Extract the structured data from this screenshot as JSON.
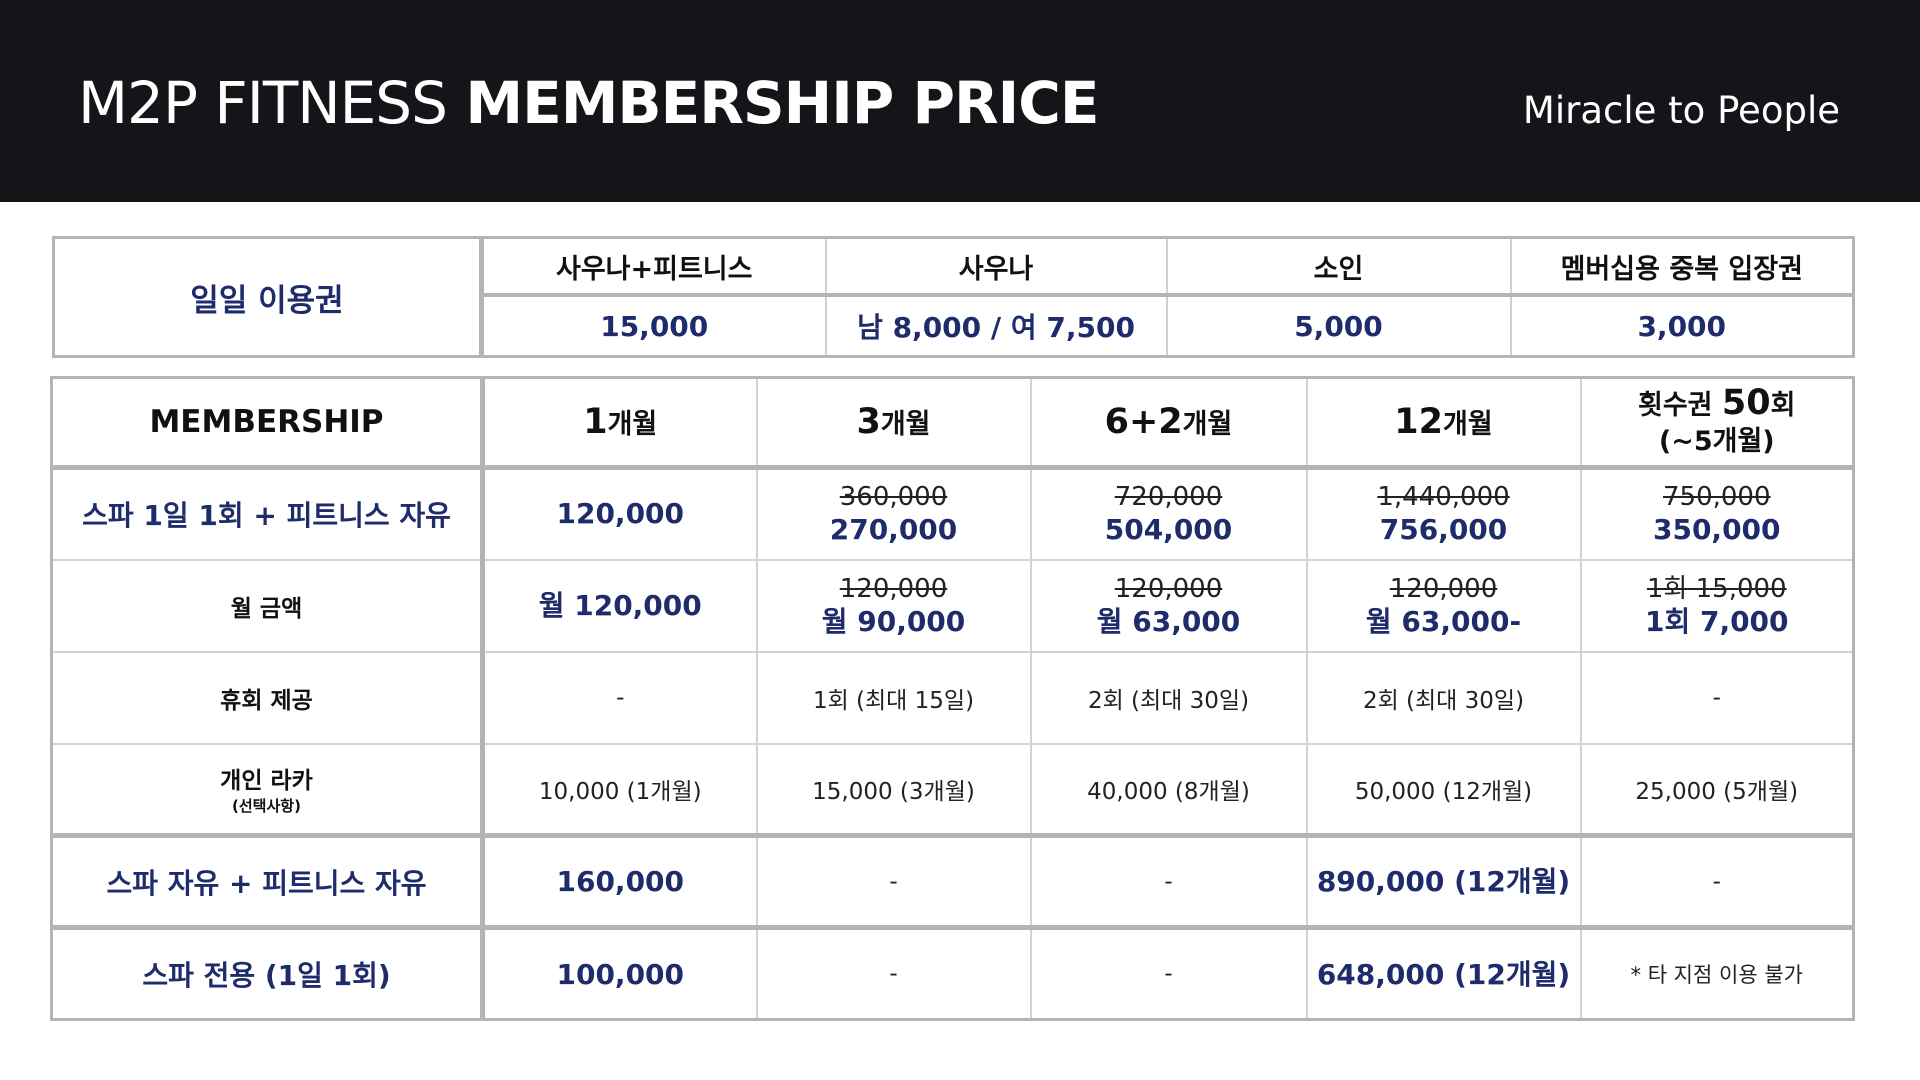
{
  "header": {
    "title_light": "M2P FITNESS",
    "title_bold": "MEMBERSHIP PRICE",
    "tagline": "Miracle to People"
  },
  "daily": {
    "label": "일일 이용권",
    "columns": [
      "사우나+피트니스",
      "사우나",
      "소인",
      "멤버십용 중복 입장권"
    ],
    "values": [
      "15,000",
      "남 8,000 / 여 7,500",
      "5,000",
      "3,000"
    ]
  },
  "membership": {
    "header_label": "MEMBERSHIP",
    "columns": [
      {
        "num": "1",
        "unit": "개월"
      },
      {
        "num": "3",
        "unit": "개월"
      },
      {
        "num": "6+2",
        "unit": "개월"
      },
      {
        "num": "12",
        "unit": "개월"
      },
      {
        "line1_a": "횟수권 ",
        "line1_b": "50",
        "line1_c": "회",
        "line2": "(~5개월)"
      }
    ],
    "rows": {
      "spa_fitness": {
        "label": "스파 1일 1회 + 피트니스 자유",
        "cells": [
          {
            "old": "",
            "new": "120,000"
          },
          {
            "old": "360,000",
            "new": "270,000"
          },
          {
            "old": "720,000",
            "new": "504,000"
          },
          {
            "old": "1,440,000",
            "new": "756,000"
          },
          {
            "old": "750,000",
            "new": "350,000"
          }
        ]
      },
      "monthly": {
        "label": "월 금액",
        "cells": [
          {
            "old": "",
            "new": "월 120,000"
          },
          {
            "old": "120,000",
            "new": "월 90,000"
          },
          {
            "old": "120,000",
            "new": "월 63,000"
          },
          {
            "old": "120,000",
            "new": "월 63,000-"
          },
          {
            "old": "1회 15,000",
            "new": "1회 7,000"
          }
        ]
      },
      "pause": {
        "label": "휴회 제공",
        "cells": [
          "-",
          "1회 (최대 15일)",
          "2회 (최대 30일)",
          "2회 (최대 30일)",
          "-"
        ]
      },
      "locker": {
        "label": "개인 라카",
        "sublabel": "(선택사항)",
        "cells": [
          "10,000 (1개월)",
          "15,000 (3개월)",
          "40,000 (8개월)",
          "50,000 (12개월)",
          "25,000 (5개월)"
        ]
      },
      "spa_free": {
        "label": "스파 자유 + 피트니스 자유",
        "cells": [
          "160,000",
          "-",
          "-",
          "890,000 (12개월)",
          "-"
        ]
      },
      "spa_only": {
        "label": "스파 전용 (1일 1회)",
        "cells": [
          "100,000",
          "-",
          "-",
          "648,000 (12개월)",
          "* 타 지점 이용 불가"
        ]
      }
    }
  },
  "colors": {
    "header_bg": "#141419",
    "navy": "#1f2c6b",
    "border": "#b4b4b4"
  }
}
